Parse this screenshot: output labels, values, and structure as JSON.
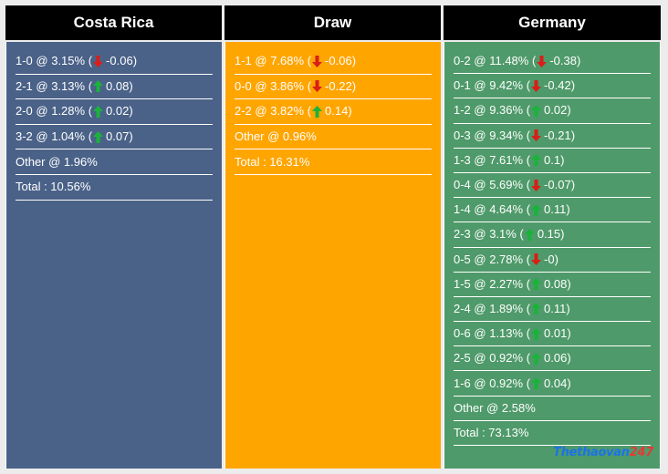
{
  "columns": [
    {
      "title": "Costa Rica",
      "rows": [
        {
          "score": "1-0",
          "prob": "3.15%",
          "dir": "down",
          "delta": "-0.06"
        },
        {
          "score": "2-1",
          "prob": "3.13%",
          "dir": "up",
          "delta": "0.08"
        },
        {
          "score": "2-0",
          "prob": "1.28%",
          "dir": "up",
          "delta": "0.02"
        },
        {
          "score": "3-2",
          "prob": "1.04%",
          "dir": "up",
          "delta": "0.07"
        }
      ],
      "other": "Other @ 1.96%",
      "total": "Total : 10.56%"
    },
    {
      "title": "Draw",
      "rows": [
        {
          "score": "1-1",
          "prob": "7.68%",
          "dir": "down",
          "delta": "-0.06"
        },
        {
          "score": "0-0",
          "prob": "3.86%",
          "dir": "down",
          "delta": "-0.22"
        },
        {
          "score": "2-2",
          "prob": "3.82%",
          "dir": "up",
          "delta": "0.14"
        }
      ],
      "other": "Other @ 0.96%",
      "total": "Total : 16.31%"
    },
    {
      "title": "Germany",
      "rows": [
        {
          "score": "0-2",
          "prob": "11.48%",
          "dir": "down",
          "delta": "-0.38"
        },
        {
          "score": "0-1",
          "prob": "9.42%",
          "dir": "down",
          "delta": "-0.42"
        },
        {
          "score": "1-2",
          "prob": "9.36%",
          "dir": "up",
          "delta": "0.02"
        },
        {
          "score": "0-3",
          "prob": "9.34%",
          "dir": "down",
          "delta": "-0.21"
        },
        {
          "score": "1-3",
          "prob": "7.61%",
          "dir": "up",
          "delta": "0.1"
        },
        {
          "score": "0-4",
          "prob": "5.69%",
          "dir": "down",
          "delta": "-0.07"
        },
        {
          "score": "1-4",
          "prob": "4.64%",
          "dir": "up",
          "delta": "0.11"
        },
        {
          "score": "2-3",
          "prob": "3.1%",
          "dir": "up",
          "delta": "0.15"
        },
        {
          "score": "0-5",
          "prob": "2.78%",
          "dir": "down",
          "delta": "-0"
        },
        {
          "score": "1-5",
          "prob": "2.27%",
          "dir": "up",
          "delta": "0.08"
        },
        {
          "score": "2-4",
          "prob": "1.89%",
          "dir": "up",
          "delta": "0.11"
        },
        {
          "score": "0-6",
          "prob": "1.13%",
          "dir": "up",
          "delta": "0.01"
        },
        {
          "score": "2-5",
          "prob": "0.92%",
          "dir": "up",
          "delta": "0.06"
        },
        {
          "score": "1-6",
          "prob": "0.92%",
          "dir": "up",
          "delta": "0.04"
        }
      ],
      "other": "Other @ 2.58%",
      "total": "Total : 73.13%"
    }
  ],
  "colors": {
    "costa_rica": "#4a6288",
    "draw": "#ffa500",
    "germany": "#4f9a6a",
    "header": "#000000",
    "arrow_up": "#19b33a",
    "arrow_down": "#d91e18"
  },
  "icons": {
    "up": "arrow-up-icon",
    "down": "arrow-down-icon"
  },
  "watermark": {
    "part1": "Thethaovan",
    "part2": "247"
  }
}
